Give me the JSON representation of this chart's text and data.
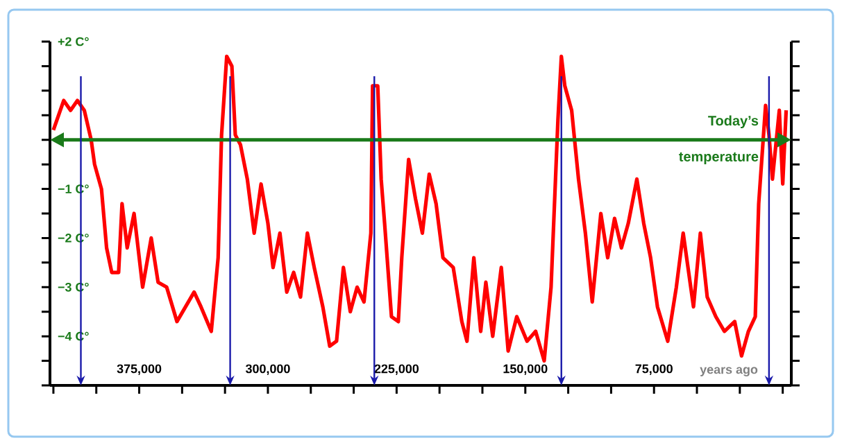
{
  "chart_data": {
    "type": "line",
    "xlabel": "years ago",
    "x": [
      425000,
      419000,
      415000,
      411000,
      407000,
      403000,
      401000,
      397000,
      394000,
      391000,
      387000,
      385000,
      382000,
      378000,
      373000,
      368000,
      364000,
      359000,
      353000,
      348000,
      343000,
      339000,
      333000,
      329000,
      327000,
      324000,
      321000,
      319000,
      316000,
      312000,
      308000,
      304000,
      300000,
      297000,
      293000,
      289000,
      285000,
      281000,
      277000,
      273000,
      268000,
      264000,
      260000,
      256000,
      252000,
      248000,
      244000,
      240000,
      239000,
      236000,
      234000,
      232000,
      228000,
      224000,
      222000,
      218000,
      214000,
      210000,
      206000,
      202000,
      198000,
      192000,
      187000,
      184000,
      180000,
      176000,
      173000,
      169000,
      164000,
      160000,
      155000,
      149000,
      144000,
      139000,
      135000,
      131000,
      129000,
      127000,
      123000,
      121000,
      119000,
      115000,
      111000,
      106000,
      102000,
      98000,
      94000,
      90000,
      85000,
      81000,
      77000,
      73000,
      67000,
      62000,
      58000,
      52000,
      48000,
      44000,
      39000,
      34000,
      28000,
      24000,
      20000,
      16000,
      14000,
      10000,
      8000,
      6000,
      2000,
      0,
      -2000
    ],
    "series": [
      {
        "color": "#ff0000",
        "values": [
          0.2,
          0.8,
          0.6,
          0.8,
          0.6,
          0.0,
          -0.5,
          -1.0,
          -2.2,
          -2.7,
          -2.7,
          -1.3,
          -2.2,
          -1.5,
          -3.0,
          -2.0,
          -2.9,
          -3.0,
          -3.7,
          -3.4,
          -3.1,
          -3.4,
          -3.9,
          -2.4,
          0.1,
          1.7,
          1.5,
          0.1,
          -0.1,
          -0.8,
          -1.9,
          -0.9,
          -1.7,
          -2.6,
          -1.9,
          -3.1,
          -2.7,
          -3.2,
          -1.9,
          -2.6,
          -3.4,
          -4.2,
          -4.1,
          -2.6,
          -3.5,
          -3.0,
          -3.3,
          -1.9,
          1.1,
          1.1,
          -0.8,
          -1.7,
          -3.6,
          -3.7,
          -2.4,
          -0.4,
          -1.2,
          -1.9,
          -0.7,
          -1.3,
          -2.4,
          -2.6,
          -3.7,
          -4.1,
          -2.4,
          -3.9,
          -2.9,
          -4.0,
          -2.6,
          -4.3,
          -3.6,
          -4.1,
          -3.9,
          -4.5,
          -3.0,
          0.4,
          1.7,
          1.1,
          0.6,
          -0.1,
          -0.8,
          -1.9,
          -3.3,
          -1.5,
          -2.4,
          -1.6,
          -2.2,
          -1.7,
          -0.8,
          -1.7,
          -2.4,
          -3.4,
          -4.1,
          -3.0,
          -1.9,
          -3.4,
          -1.9,
          -3.2,
          -3.6,
          -3.9,
          -3.7,
          -4.4,
          -3.9,
          -3.6,
          -1.3,
          0.7,
          0.1,
          -0.8,
          0.6,
          -0.9,
          0.6
        ]
      }
    ],
    "xlim": [
      427000,
      -5000
    ],
    "xticks": [
      {
        "value": 425000,
        "label": null
      },
      {
        "value": 400000,
        "label": null
      },
      {
        "value": 375000,
        "label": "375,000"
      },
      {
        "value": 350000,
        "label": null
      },
      {
        "value": 325000,
        "label": null
      },
      {
        "value": 300000,
        "label": "300,000"
      },
      {
        "value": 275000,
        "label": null
      },
      {
        "value": 250000,
        "label": null
      },
      {
        "value": 225000,
        "label": "225,000"
      },
      {
        "value": 200000,
        "label": null
      },
      {
        "value": 175000,
        "label": null
      },
      {
        "value": 150000,
        "label": "150,000"
      },
      {
        "value": 125000,
        "label": null
      },
      {
        "value": 100000,
        "label": null
      },
      {
        "value": 75000,
        "label": "75,000"
      },
      {
        "value": 50000,
        "label": null
      },
      {
        "value": 25000,
        "label": null
      },
      {
        "value": 0,
        "label": null
      }
    ],
    "ylim": [
      -5,
      2
    ],
    "yticks": [
      {
        "value": -5,
        "label": null
      },
      {
        "value": -4.5,
        "label": null
      },
      {
        "value": -4,
        "label": "−4 C°"
      },
      {
        "value": -3.5,
        "label": null
      },
      {
        "value": -3,
        "label": "−3 C°"
      },
      {
        "value": -2.5,
        "label": null
      },
      {
        "value": -2,
        "label": "−2 C°"
      },
      {
        "value": -1.5,
        "label": null
      },
      {
        "value": -1,
        "label": "−1 C°"
      },
      {
        "value": -0.5,
        "label": null
      },
      {
        "value": 0,
        "label": null
      },
      {
        "value": 0.5,
        "label": null
      },
      {
        "value": 1,
        "label": null
      },
      {
        "value": 1.5,
        "label": null
      },
      {
        "value": 2,
        "label": "+2 C°"
      }
    ],
    "ref_lines": [
      {
        "axis": "y",
        "value": 0,
        "label": "Today’s temperature",
        "color": "#1a7a1a"
      },
      {
        "axis": "x",
        "value": 409000,
        "color": "#1a1aaa"
      },
      {
        "axis": "x",
        "value": 322000,
        "color": "#1a1aaa"
      },
      {
        "axis": "x",
        "value": 238000,
        "color": "#1a1aaa"
      },
      {
        "axis": "x",
        "value": 129000,
        "color": "#1a1aaa"
      },
      {
        "axis": "x",
        "value": 8000,
        "color": "#1a1aaa"
      }
    ],
    "grid": false,
    "marker": "none",
    "line_style": "solid"
  }
}
